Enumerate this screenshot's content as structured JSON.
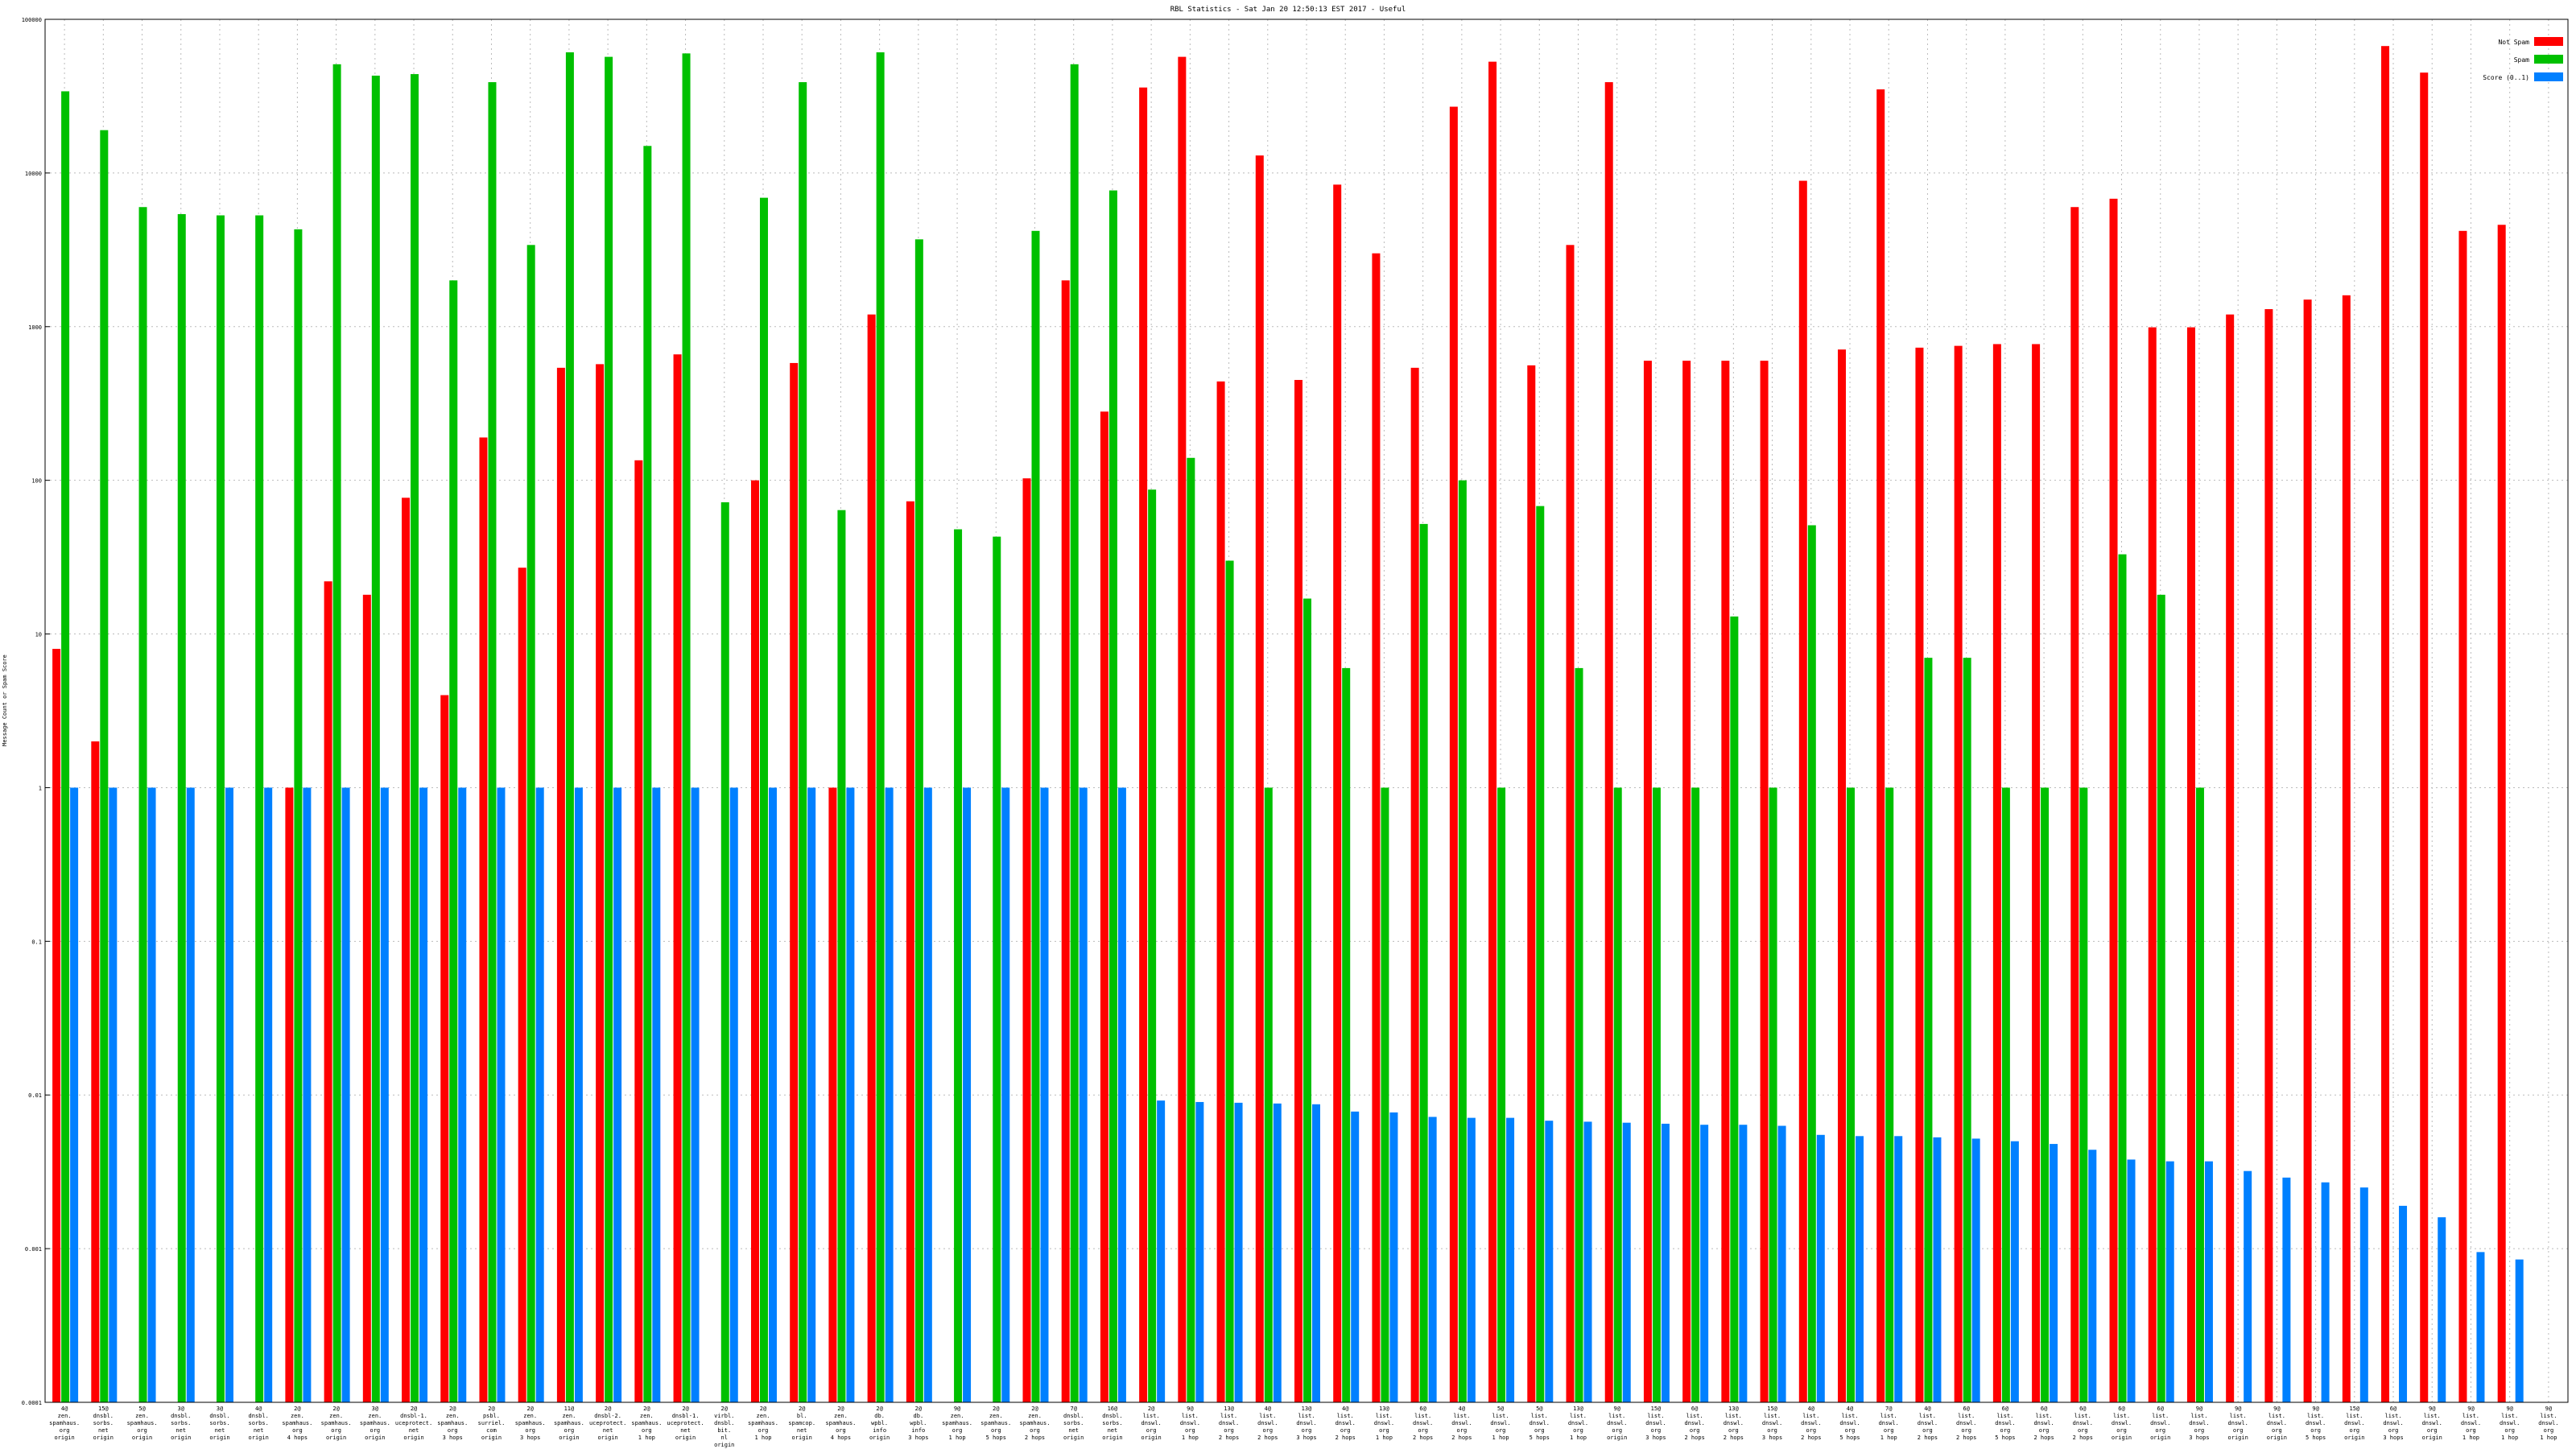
{
  "chart_data": {
    "type": "bar",
    "title": "RBL Statistics - Sat Jan 20 12:50:13 EST 2017 - Useful",
    "ylabel": "Message Count or Spam Score",
    "xlabel": "",
    "y_scale": "log",
    "ylim": [
      0.0001,
      100000
    ],
    "y_ticks": [
      {
        "value": 100000,
        "label": "100000"
      },
      {
        "value": 10000,
        "label": "10000"
      },
      {
        "value": 1000,
        "label": "1000"
      },
      {
        "value": 100,
        "label": "100"
      },
      {
        "value": 10,
        "label": "10"
      },
      {
        "value": 1,
        "label": "1"
      },
      {
        "value": 0.1,
        "label": "0.1"
      },
      {
        "value": 0.01,
        "label": "0.01"
      },
      {
        "value": 0.001,
        "label": "0.001"
      },
      {
        "value": 0.0001,
        "label": "0.0001"
      }
    ],
    "grid": true,
    "legend_position": "top-right",
    "colors": {
      "not_spam": "#ff0000",
      "spam": "#00c000",
      "score": "#0080ff"
    },
    "categories": [
      [
        "4@",
        "zen.",
        "spamhaus.",
        "org",
        "origin"
      ],
      [
        "15@",
        "dnsbl.",
        "sorbs.",
        "net",
        "origin"
      ],
      [
        "5@",
        "zen.",
        "spamhaus.",
        "org",
        "origin"
      ],
      [
        "3@",
        "dnsbl.",
        "sorbs.",
        "net",
        "origin"
      ],
      [
        "3@",
        "dnsbl.",
        "sorbs.",
        "net",
        "origin"
      ],
      [
        "4@",
        "dnsbl.",
        "sorbs.",
        "net",
        "origin"
      ],
      [
        "2@",
        "zen.",
        "spamhaus.",
        "org",
        "4 hops"
      ],
      [
        "2@",
        "zen.",
        "spamhaus.",
        "org",
        "origin"
      ],
      [
        "3@",
        "zen.",
        "spamhaus.",
        "org",
        "origin"
      ],
      [
        "2@",
        "dnsbl-1.",
        "uceprotect.",
        "net",
        "origin"
      ],
      [
        "2@",
        "zen.",
        "spamhaus.",
        "org",
        "3 hops"
      ],
      [
        "2@",
        "psbl.",
        "surriel.",
        "com",
        "origin"
      ],
      [
        "2@",
        "zen.",
        "spamhaus.",
        "org",
        "3 hops"
      ],
      [
        "11@",
        "zen.",
        "spamhaus.",
        "org",
        "origin"
      ],
      [
        "2@",
        "dnsbl-2.",
        "uceprotect.",
        "net",
        "origin"
      ],
      [
        "2@",
        "zen.",
        "spamhaus.",
        "org",
        "1 hop"
      ],
      [
        "2@",
        "dnsbl-1.",
        "uceprotect.",
        "net",
        "origin"
      ],
      [
        "2@",
        "virbl.",
        "dnsbl.",
        "bit.",
        "nl",
        "origin"
      ],
      [
        "2@",
        "zen.",
        "spamhaus.",
        "org",
        "1 hop"
      ],
      [
        "2@",
        "bl.",
        "spamcop.",
        "net",
        "origin"
      ],
      [
        "2@",
        "zen.",
        "spamhaus.",
        "org",
        "4 hops"
      ],
      [
        "2@",
        "db.",
        "wpbl.",
        "info",
        "origin"
      ],
      [
        "2@",
        "db.",
        "wpbl.",
        "info",
        "3 hops"
      ],
      [
        "9@",
        "zen.",
        "spamhaus.",
        "org",
        "1 hop"
      ],
      [
        "2@",
        "zen.",
        "spamhaus.",
        "org",
        "5 hops"
      ],
      [
        "2@",
        "zen.",
        "spamhaus.",
        "org",
        "2 hops"
      ],
      [
        "7@",
        "dnsbl.",
        "sorbs.",
        "net",
        "origin"
      ],
      [
        "16@",
        "dnsbl.",
        "sorbs.",
        "net",
        "origin"
      ],
      [
        "2@",
        "list.",
        "dnswl.",
        "org",
        "origin"
      ],
      [
        "9@",
        "list.",
        "dnswl.",
        "org",
        "1 hop"
      ],
      [
        "13@",
        "list.",
        "dnswl.",
        "org",
        "2 hops"
      ],
      [
        "4@",
        "list.",
        "dnswl.",
        "org",
        "2 hops"
      ],
      [
        "13@",
        "list.",
        "dnswl.",
        "org",
        "3 hops"
      ],
      [
        "4@",
        "list.",
        "dnswl.",
        "org",
        "2 hops"
      ],
      [
        "13@",
        "list.",
        "dnswl.",
        "org",
        "1 hop"
      ],
      [
        "6@",
        "list.",
        "dnswl.",
        "org",
        "2 hops"
      ],
      [
        "4@",
        "list.",
        "dnswl.",
        "org",
        "2 hops"
      ],
      [
        "5@",
        "list.",
        "dnswl.",
        "org",
        "1 hop"
      ],
      [
        "5@",
        "list.",
        "dnswl.",
        "org",
        "5 hops"
      ],
      [
        "13@",
        "list.",
        "dnswl.",
        "org",
        "1 hop"
      ],
      [
        "9@",
        "list.",
        "dnswl.",
        "org",
        "origin"
      ],
      [
        "15@",
        "list.",
        "dnswl.",
        "org",
        "3 hops"
      ],
      [
        "6@",
        "list.",
        "dnswl.",
        "org",
        "2 hops"
      ],
      [
        "13@",
        "list.",
        "dnswl.",
        "org",
        "2 hops"
      ],
      [
        "15@",
        "list.",
        "dnswl.",
        "org",
        "3 hops"
      ],
      [
        "4@",
        "list.",
        "dnswl.",
        "org",
        "2 hops"
      ],
      [
        "4@",
        "list.",
        "dnswl.",
        "org",
        "5 hops"
      ],
      [
        "7@",
        "list.",
        "dnswl.",
        "org",
        "1 hop"
      ],
      [
        "4@",
        "list.",
        "dnswl.",
        "org",
        "2 hops"
      ],
      [
        "6@",
        "list.",
        "dnswl.",
        "org",
        "2 hops"
      ],
      [
        "6@",
        "list.",
        "dnswl.",
        "org",
        "5 hops"
      ],
      [
        "6@",
        "list.",
        "dnswl.",
        "org",
        "2 hops"
      ],
      [
        "6@",
        "list.",
        "dnswl.",
        "org",
        "2 hops"
      ],
      [
        "6@",
        "list.",
        "dnswl.",
        "org",
        "origin"
      ],
      [
        "6@",
        "list.",
        "dnswl.",
        "org",
        "origin"
      ],
      [
        "9@",
        "list.",
        "dnswl.",
        "org",
        "3 hops"
      ],
      [
        "9@",
        "list.",
        "dnswl.",
        "org",
        "origin"
      ],
      [
        "9@",
        "list.",
        "dnswl.",
        "org",
        "origin"
      ],
      [
        "9@",
        "list.",
        "dnswl.",
        "org",
        "5 hops"
      ],
      [
        "15@",
        "list.",
        "dnswl.",
        "org",
        "origin"
      ],
      [
        "6@",
        "list.",
        "dnswl.",
        "org",
        "3 hops"
      ],
      [
        "9@",
        "list.",
        "dnswl.",
        "org",
        "origin"
      ],
      [
        "9@",
        "list.",
        "dnswl.",
        "org",
        "1 hop"
      ],
      [
        "9@",
        "list.",
        "dnswl.",
        "org",
        "1 hop"
      ],
      [
        "9@",
        "list.",
        "dnswl.",
        "org",
        "1 hop"
      ]
    ],
    "series": [
      {
        "name": "Not Spam",
        "values": [
          8,
          2,
          0,
          0,
          0,
          0,
          1,
          22,
          18,
          77,
          4,
          190,
          27,
          540,
          570,
          135,
          660,
          0,
          100,
          580,
          1,
          1200,
          73,
          0,
          0,
          103,
          2000,
          280,
          36000,
          57000,
          440,
          13000,
          450,
          8400,
          3000,
          540,
          27000,
          53000,
          560,
          3400,
          39000,
          600,
          600,
          600,
          600,
          8900,
          710,
          35000,
          730,
          750,
          770,
          770,
          6000,
          6800,
          990,
          990,
          1200,
          1300,
          1500,
          1600,
          67000,
          45000,
          4200,
          4600,
          0
        ]
      },
      {
        "name": "Spam",
        "values": [
          34000,
          19000,
          6000,
          5400,
          5300,
          5300,
          4300,
          51000,
          43000,
          44000,
          2000,
          39000,
          3400,
          61000,
          57000,
          15000,
          60000,
          72,
          6900,
          39000,
          64,
          61000,
          3700,
          48,
          43,
          4200,
          51000,
          7700,
          87,
          140,
          30,
          1,
          17,
          6,
          1,
          52,
          100,
          1,
          68,
          6,
          1,
          1,
          1,
          13,
          1,
          51,
          1,
          1,
          7,
          7,
          1,
          1,
          1,
          33,
          18,
          1,
          0,
          0,
          0,
          0,
          0,
          0,
          0,
          0,
          0
        ]
      },
      {
        "name": "Score (0..1)",
        "values": [
          1,
          1,
          1,
          1,
          1,
          1,
          1,
          1,
          1,
          1,
          1,
          1,
          1,
          1,
          1,
          1,
          1,
          1,
          1,
          1,
          1,
          1,
          1,
          1,
          1,
          1,
          1,
          1,
          0.0092,
          0.009,
          0.0089,
          0.0088,
          0.0087,
          0.0078,
          0.0077,
          0.0072,
          0.0071,
          0.0071,
          0.0068,
          0.0067,
          0.0066,
          0.0065,
          0.0064,
          0.0064,
          0.0063,
          0.0055,
          0.0054,
          0.0054,
          0.0053,
          0.0052,
          0.005,
          0.0048,
          0.0044,
          0.0038,
          0.0037,
          0.0037,
          0.0032,
          0.0029,
          0.0027,
          0.0025,
          0.0019,
          0.0016,
          0.00095,
          0.00085,
          0
        ]
      }
    ]
  }
}
